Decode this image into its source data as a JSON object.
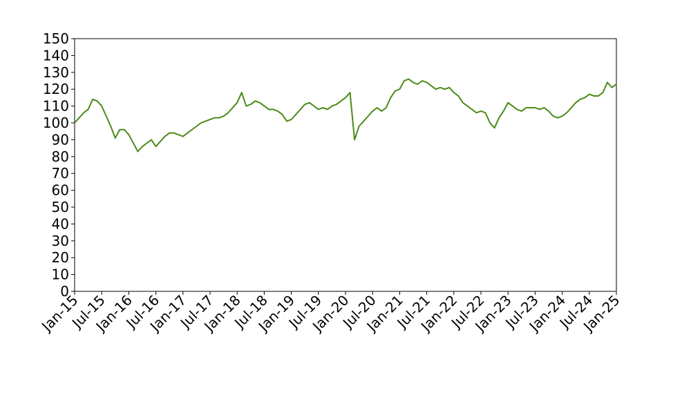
{
  "chart_data": {
    "type": "line",
    "x": [
      "Jan-15",
      "Feb-15",
      "Mar-15",
      "Apr-15",
      "May-15",
      "Jun-15",
      "Jul-15",
      "Aug-15",
      "Sep-15",
      "Oct-15",
      "Nov-15",
      "Dec-15",
      "Jan-16",
      "Feb-16",
      "Mar-16",
      "Apr-16",
      "May-16",
      "Jun-16",
      "Jul-16",
      "Aug-16",
      "Sep-16",
      "Oct-16",
      "Nov-16",
      "Dec-16",
      "Jan-17",
      "Feb-17",
      "Mar-17",
      "Apr-17",
      "May-17",
      "Jun-17",
      "Jul-17",
      "Aug-17",
      "Sep-17",
      "Oct-17",
      "Nov-17",
      "Dec-17",
      "Jan-18",
      "Feb-18",
      "Mar-18",
      "Apr-18",
      "May-18",
      "Jun-18",
      "Jul-18",
      "Aug-18",
      "Sep-18",
      "Oct-18",
      "Nov-18",
      "Dec-18",
      "Jan-19",
      "Feb-19",
      "Mar-19",
      "Apr-19",
      "May-19",
      "Jun-19",
      "Jul-19",
      "Aug-19",
      "Sep-19",
      "Oct-19",
      "Nov-19",
      "Dec-19",
      "Jan-20",
      "Feb-20",
      "Mar-20",
      "Apr-20",
      "May-20",
      "Jun-20",
      "Jul-20",
      "Aug-20",
      "Sep-20",
      "Oct-20",
      "Nov-20",
      "Dec-20",
      "Jan-21",
      "Feb-21",
      "Mar-21",
      "Apr-21",
      "May-21",
      "Jun-21",
      "Jul-21",
      "Aug-21",
      "Sep-21",
      "Oct-21",
      "Nov-21",
      "Dec-21",
      "Jan-22",
      "Feb-22",
      "Mar-22",
      "Apr-22",
      "May-22",
      "Jun-22",
      "Jul-22",
      "Aug-22",
      "Sep-22",
      "Oct-22",
      "Nov-22",
      "Dec-22",
      "Jan-23",
      "Feb-23",
      "Mar-23",
      "Apr-23",
      "May-23",
      "Jun-23",
      "Jul-23",
      "Aug-23",
      "Sep-23",
      "Oct-23",
      "Nov-23",
      "Dec-23",
      "Jan-24",
      "Feb-24",
      "Mar-24",
      "Apr-24",
      "May-24",
      "Jun-24",
      "Jul-24",
      "Aug-24",
      "Sep-24",
      "Oct-24",
      "Nov-24",
      "Dec-24",
      "Jan-25"
    ],
    "series": [
      {
        "color": "#4a8a16",
        "values": [
          100,
          103,
          106,
          108,
          114,
          113,
          110,
          104,
          98,
          91,
          96,
          96,
          93,
          88,
          83,
          86,
          88,
          90,
          86,
          89,
          92,
          94,
          94,
          93,
          92,
          94,
          96,
          98,
          100,
          101,
          102,
          103,
          103,
          104,
          106,
          109,
          112,
          118,
          110,
          111,
          113,
          112,
          110,
          108,
          108,
          107,
          105,
          101,
          102,
          105,
          108,
          111,
          112,
          110,
          108,
          109,
          108,
          110,
          111,
          113,
          115,
          118,
          90,
          98,
          101,
          104,
          107,
          109,
          107,
          109,
          115,
          119,
          120,
          125,
          126,
          124,
          123,
          125,
          124,
          122,
          120,
          121,
          120,
          121,
          118,
          116,
          112,
          110,
          108,
          106,
          107,
          106,
          100,
          97,
          103,
          107,
          112,
          110,
          108,
          107,
          109,
          109,
          109,
          108,
          109,
          107,
          104,
          103,
          104,
          106,
          109,
          112,
          114,
          115,
          117,
          116,
          116,
          118,
          124,
          121,
          123
        ]
      }
    ],
    "xlim": [
      "Jan-15",
      "Jan-25"
    ],
    "xticks": [
      "Jan-15",
      "Jul-15",
      "Jan-16",
      "Jul-16",
      "Jan-17",
      "Jul-17",
      "Jan-18",
      "Jul-18",
      "Jan-19",
      "Jul-19",
      "Jan-20",
      "Jul-20",
      "Jan-21",
      "Jul-21",
      "Jan-22",
      "Jul-22",
      "Jan-23",
      "Jul-23",
      "Jan-24",
      "Jul-24",
      "Jan-25"
    ],
    "ylim": [
      0,
      150
    ],
    "yticks": [
      0,
      10,
      20,
      30,
      40,
      50,
      60,
      70,
      80,
      90,
      100,
      110,
      120,
      130,
      140,
      150
    ]
  }
}
